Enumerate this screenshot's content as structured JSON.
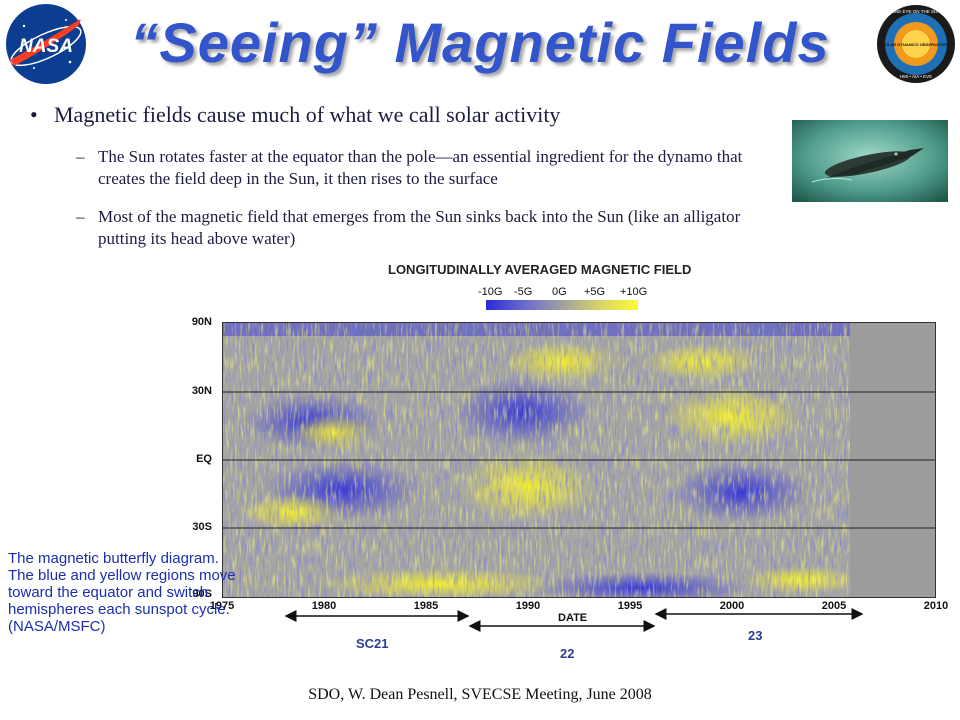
{
  "slide": {
    "title": "“Seeing” Magnetic Fields",
    "bullet": "Magnetic fields cause much of what we call solar activity",
    "sub_items": [
      "The Sun rotates faster at the equator than the pole—an essential ingredient for the dynamo that creates the field deep in the Sun, it then rises to the surface",
      "Most of the magnetic field that emerges from the Sun sinks back into the Sun (like an alligator putting its head above water)"
    ],
    "bullet_dot": "•",
    "dash": "–",
    "footer": "SDO, W. Dean Pesnell, SVECSE Meeting, June 2008",
    "caption": "The magnetic butterfly diagram. The blue and yellow regions move toward the equator and switch hemispheres each sunspot cycle. (NASA/MSFC)"
  },
  "logos": {
    "left": "NASA",
    "right_ring": "ONE EYE ON THE SUN",
    "right_main": "SOLAR DYNAMICS OBSERVATORY",
    "right_bottom": "HMI • AIA • EVE"
  },
  "icons": [
    "nasa-logo-icon",
    "sdo-logo-icon",
    "alligator-photo-icon"
  ],
  "colors": {
    "title": "#3355cc",
    "caption": "#1a2fb0",
    "blue_field": "#3a3adc",
    "yellow_field": "#f2ee2a",
    "neutral": "#9a9a9a"
  },
  "chart": {
    "title": "LONGITUDINALLY AVERAGED MAGNETIC FIELD",
    "colorbar_labels": [
      "-10G",
      "-5G",
      "0G",
      "+5G",
      "+10G"
    ],
    "y_ticks": [
      "90N",
      "30N",
      "EQ",
      "30S",
      "90S"
    ],
    "x_ticks": [
      "1975",
      "1980",
      "1985",
      "1990",
      "1995",
      "2000",
      "2005",
      "2010"
    ],
    "xlabel": "DATE",
    "cycles": [
      "SC21",
      "22",
      "23"
    ]
  },
  "chart_data": {
    "type": "heatmap",
    "title": "LONGITUDINALLY AVERAGED MAGNETIC FIELD",
    "xlabel": "DATE",
    "ylabel": "",
    "x_ticks": [
      1975,
      1980,
      1985,
      1990,
      1995,
      2000,
      2005,
      2010
    ],
    "y_ticks": [
      "90N",
      "30N",
      "EQ",
      "30S",
      "90S"
    ],
    "xlim": [
      1975,
      2010
    ],
    "colorbar": {
      "labels": [
        "-10G",
        "-5G",
        "0G",
        "+5G",
        "+10G"
      ],
      "range": [
        -10,
        10
      ],
      "unit": "G"
    },
    "data_extent_year": 2006.3,
    "cycles": [
      {
        "label": "SC21",
        "start": 1976.5,
        "end": 1987.7
      },
      {
        "label": "22",
        "start": 1987.7,
        "end": 1996.7
      },
      {
        "label": "23",
        "start": 1996.7,
        "end": 2006.5
      }
    ]
  }
}
